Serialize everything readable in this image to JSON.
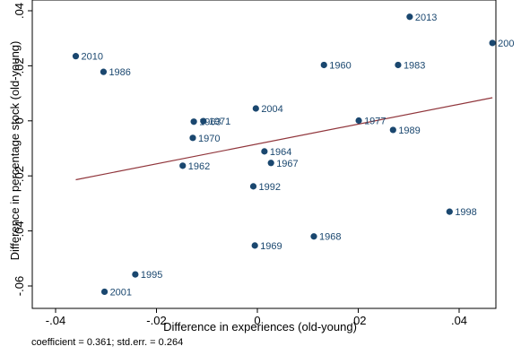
{
  "chart_data": {
    "type": "scatter",
    "xlabel": "Difference in experiences (old-young)",
    "ylabel": "Difference in percentage stock (old-young)",
    "xlim": [
      -0.04,
      0.046
    ],
    "ylim": [
      -0.067,
      0.04
    ],
    "x_ticks": [
      -0.04,
      -0.02,
      0,
      0.02,
      0.04
    ],
    "x_tick_labels": [
      "-.04",
      "-.02",
      "0",
      ".02",
      ".04"
    ],
    "y_ticks": [
      -0.06,
      -0.04,
      -0.02,
      0,
      0.02,
      0.04
    ],
    "y_tick_labels": [
      "-.06",
      "-.04",
      "-.02",
      "0",
      ".02",
      ".04"
    ],
    "grid": false,
    "legend": "none",
    "marker_color": "#1a476f",
    "fit_line_color": "#90353b",
    "points": [
      {
        "label": "2010",
        "x": -0.036,
        "y": 0.0235
      },
      {
        "label": "1986",
        "x": -0.0305,
        "y": 0.0178
      },
      {
        "label": "2013",
        "x": 0.0302,
        "y": 0.0378
      },
      {
        "label": "200",
        "x": 0.0466,
        "y": 0.0283
      },
      {
        "label": "1960",
        "x": 0.0132,
        "y": 0.0203
      },
      {
        "label": "1983",
        "x": 0.0279,
        "y": 0.0203
      },
      {
        "label": "2004",
        "x": -0.0003,
        "y": 0.0045
      },
      {
        "label": "1977",
        "x": 0.0201,
        "y": 0.0001
      },
      {
        "label": "1989",
        "x": 0.0269,
        "y": -0.0033
      },
      {
        "label": "1963",
        "x": -0.0126,
        "y": -0.0003
      },
      {
        "label": "1971",
        "x": -0.0107,
        "y": -0.0001
      },
      {
        "label": "1970",
        "x": -0.0128,
        "y": -0.0062
      },
      {
        "label": "1964",
        "x": 0.0014,
        "y": -0.0111
      },
      {
        "label": "1967",
        "x": 0.0027,
        "y": -0.0153
      },
      {
        "label": "1962",
        "x": -0.0148,
        "y": -0.0163
      },
      {
        "label": "1992",
        "x": -0.0008,
        "y": -0.0238
      },
      {
        "label": "1998",
        "x": 0.0381,
        "y": -0.033
      },
      {
        "label": "1968",
        "x": 0.0112,
        "y": -0.042
      },
      {
        "label": "1969",
        "x": -0.0005,
        "y": -0.0453
      },
      {
        "label": "1995",
        "x": -0.0242,
        "y": -0.0558
      },
      {
        "label": "2001",
        "x": -0.0303,
        "y": -0.0621
      }
    ],
    "fit_line": {
      "x": [
        -0.036,
        0.0466
      ],
      "y": [
        -0.0214,
        0.0084
      ]
    }
  },
  "note": "coefficient = 0.361; std.err. = 0.264"
}
